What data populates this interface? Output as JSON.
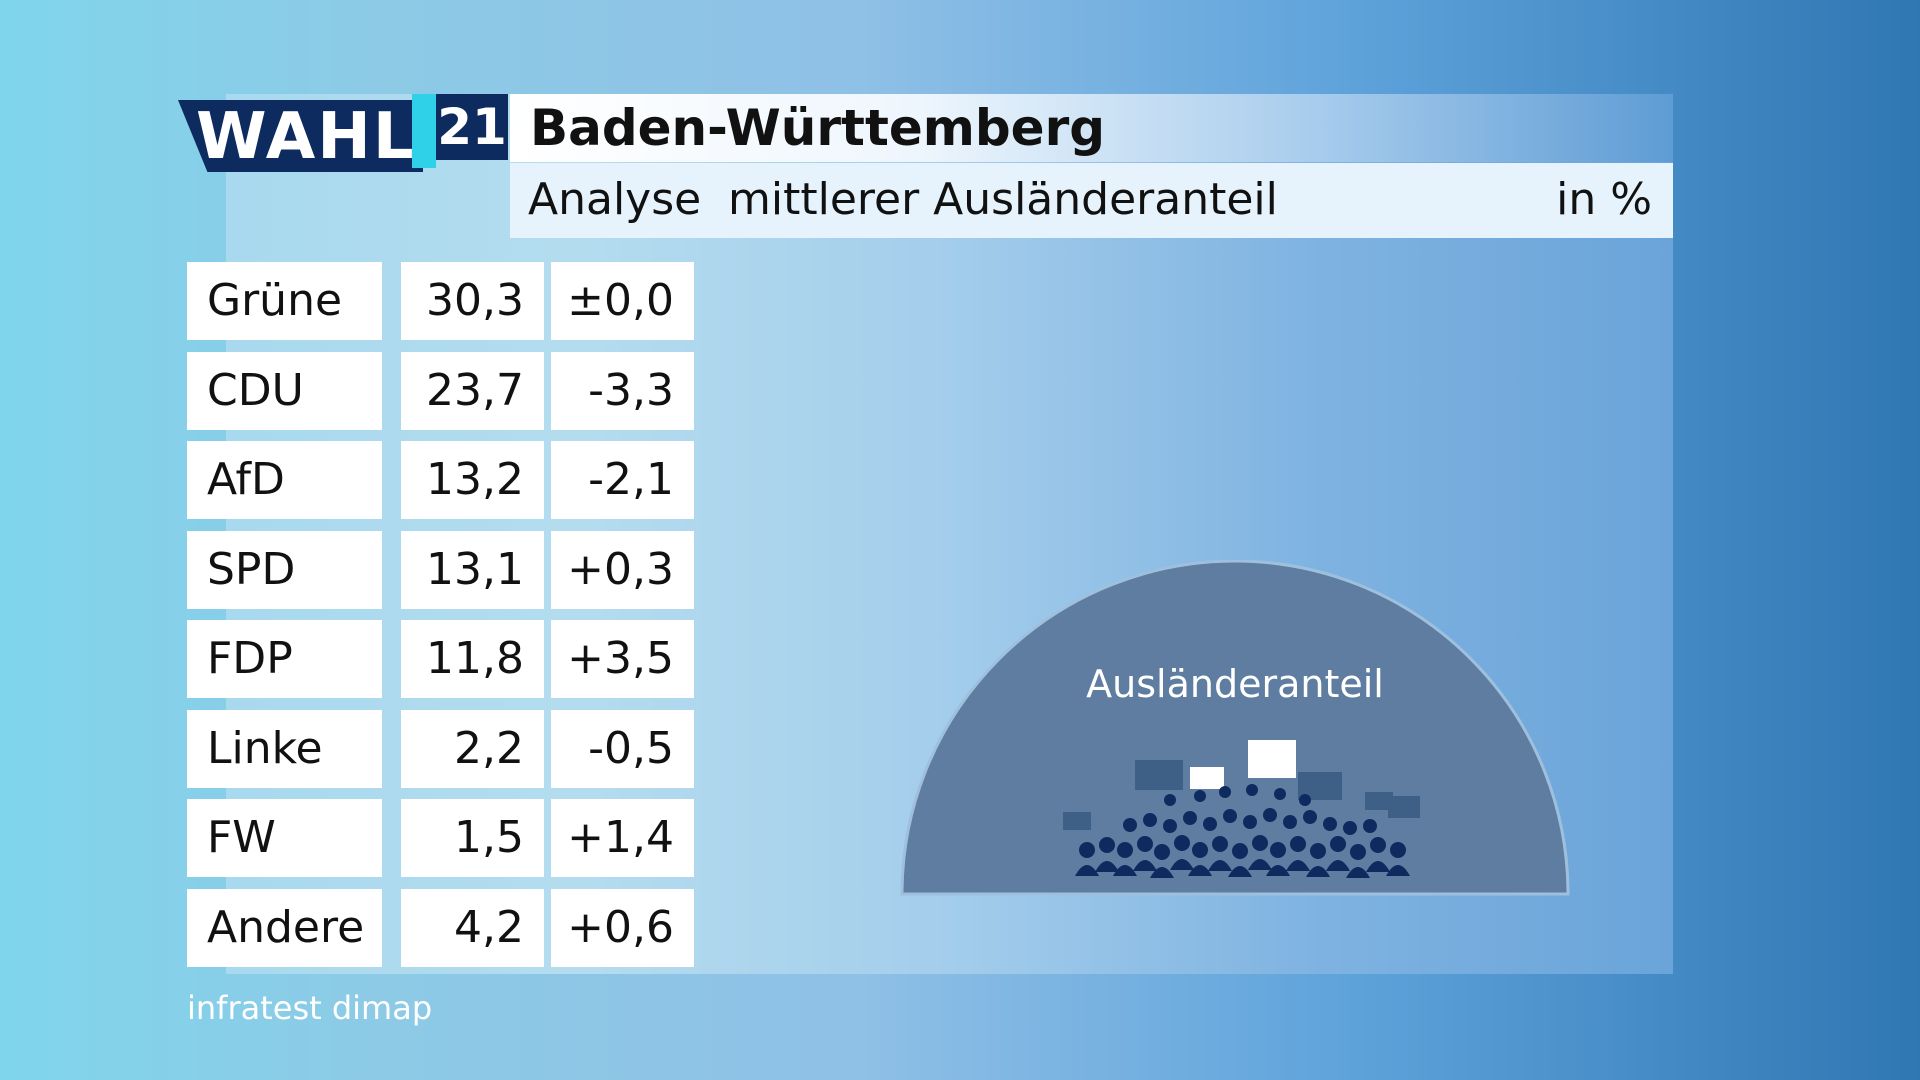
{
  "logo": {
    "word": "WAHL",
    "number": "21"
  },
  "header": {
    "title": "Baden-Württemberg",
    "analysis_label": "Analyse",
    "metric_label": "mittlerer Ausländeranteil",
    "unit": "in %"
  },
  "results": [
    {
      "party": "Grüne",
      "value": "30,3",
      "change": "±0,0"
    },
    {
      "party": "CDU",
      "value": "23,7",
      "change": "-3,3"
    },
    {
      "party": "AfD",
      "value": "13,2",
      "change": "-2,1"
    },
    {
      "party": "SPD",
      "value": "13,1",
      "change": "+0,3"
    },
    {
      "party": "FDP",
      "value": "11,8",
      "change": "+3,5"
    },
    {
      "party": "Linke",
      "value": "2,2",
      "change": "-0,5"
    },
    {
      "party": "FW",
      "value": "1,5",
      "change": "+1,4"
    },
    {
      "party": "Andere",
      "value": "4,2",
      "change": "+0,6"
    }
  ],
  "illustration": {
    "label": "Ausländeranteil",
    "icon": "crowd-with-flags-icon"
  },
  "source": "infratest dimap",
  "colors": {
    "navy": "#0e2b5f",
    "accent": "#2fd1e8",
    "dome": "#5e7da0"
  }
}
